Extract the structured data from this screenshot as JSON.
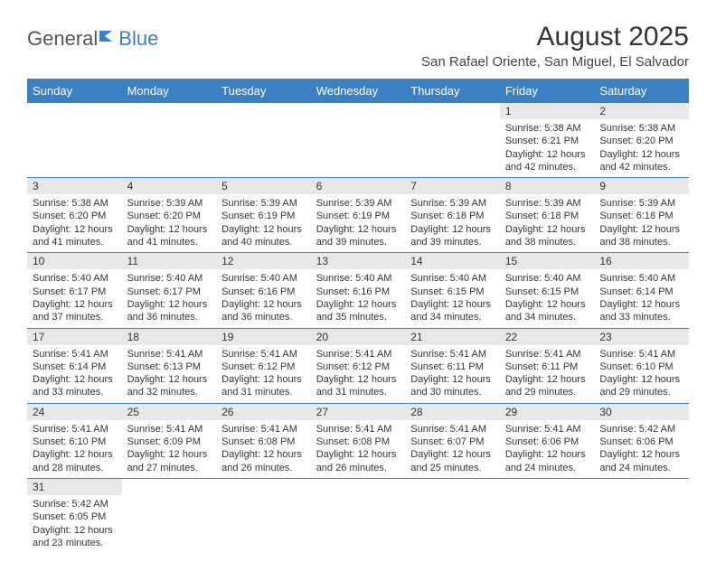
{
  "logo": {
    "part1": "General",
    "part2": "Blue"
  },
  "title": "August 2025",
  "subtitle": "San Rafael Oriente, San Miguel, El Salvador",
  "brand_color": "#3b7fc4",
  "daynum_bg": "#e8e8e8",
  "daysOfWeek": [
    "Sunday",
    "Monday",
    "Tuesday",
    "Wednesday",
    "Thursday",
    "Friday",
    "Saturday"
  ],
  "weeks": [
    [
      null,
      null,
      null,
      null,
      null,
      {
        "n": "1",
        "sr": "5:38 AM",
        "ss": "6:21 PM",
        "dl": "12 hours and 42 minutes."
      },
      {
        "n": "2",
        "sr": "5:38 AM",
        "ss": "6:20 PM",
        "dl": "12 hours and 42 minutes."
      }
    ],
    [
      {
        "n": "3",
        "sr": "5:38 AM",
        "ss": "6:20 PM",
        "dl": "12 hours and 41 minutes."
      },
      {
        "n": "4",
        "sr": "5:39 AM",
        "ss": "6:20 PM",
        "dl": "12 hours and 41 minutes."
      },
      {
        "n": "5",
        "sr": "5:39 AM",
        "ss": "6:19 PM",
        "dl": "12 hours and 40 minutes."
      },
      {
        "n": "6",
        "sr": "5:39 AM",
        "ss": "6:19 PM",
        "dl": "12 hours and 39 minutes."
      },
      {
        "n": "7",
        "sr": "5:39 AM",
        "ss": "6:18 PM",
        "dl": "12 hours and 39 minutes."
      },
      {
        "n": "8",
        "sr": "5:39 AM",
        "ss": "6:18 PM",
        "dl": "12 hours and 38 minutes."
      },
      {
        "n": "9",
        "sr": "5:39 AM",
        "ss": "6:18 PM",
        "dl": "12 hours and 38 minutes."
      }
    ],
    [
      {
        "n": "10",
        "sr": "5:40 AM",
        "ss": "6:17 PM",
        "dl": "12 hours and 37 minutes."
      },
      {
        "n": "11",
        "sr": "5:40 AM",
        "ss": "6:17 PM",
        "dl": "12 hours and 36 minutes."
      },
      {
        "n": "12",
        "sr": "5:40 AM",
        "ss": "6:16 PM",
        "dl": "12 hours and 36 minutes."
      },
      {
        "n": "13",
        "sr": "5:40 AM",
        "ss": "6:16 PM",
        "dl": "12 hours and 35 minutes."
      },
      {
        "n": "14",
        "sr": "5:40 AM",
        "ss": "6:15 PM",
        "dl": "12 hours and 34 minutes."
      },
      {
        "n": "15",
        "sr": "5:40 AM",
        "ss": "6:15 PM",
        "dl": "12 hours and 34 minutes."
      },
      {
        "n": "16",
        "sr": "5:40 AM",
        "ss": "6:14 PM",
        "dl": "12 hours and 33 minutes."
      }
    ],
    [
      {
        "n": "17",
        "sr": "5:41 AM",
        "ss": "6:14 PM",
        "dl": "12 hours and 33 minutes."
      },
      {
        "n": "18",
        "sr": "5:41 AM",
        "ss": "6:13 PM",
        "dl": "12 hours and 32 minutes."
      },
      {
        "n": "19",
        "sr": "5:41 AM",
        "ss": "6:12 PM",
        "dl": "12 hours and 31 minutes."
      },
      {
        "n": "20",
        "sr": "5:41 AM",
        "ss": "6:12 PM",
        "dl": "12 hours and 31 minutes."
      },
      {
        "n": "21",
        "sr": "5:41 AM",
        "ss": "6:11 PM",
        "dl": "12 hours and 30 minutes."
      },
      {
        "n": "22",
        "sr": "5:41 AM",
        "ss": "6:11 PM",
        "dl": "12 hours and 29 minutes."
      },
      {
        "n": "23",
        "sr": "5:41 AM",
        "ss": "6:10 PM",
        "dl": "12 hours and 29 minutes."
      }
    ],
    [
      {
        "n": "24",
        "sr": "5:41 AM",
        "ss": "6:10 PM",
        "dl": "12 hours and 28 minutes."
      },
      {
        "n": "25",
        "sr": "5:41 AM",
        "ss": "6:09 PM",
        "dl": "12 hours and 27 minutes."
      },
      {
        "n": "26",
        "sr": "5:41 AM",
        "ss": "6:08 PM",
        "dl": "12 hours and 26 minutes."
      },
      {
        "n": "27",
        "sr": "5:41 AM",
        "ss": "6:08 PM",
        "dl": "12 hours and 26 minutes."
      },
      {
        "n": "28",
        "sr": "5:41 AM",
        "ss": "6:07 PM",
        "dl": "12 hours and 25 minutes."
      },
      {
        "n": "29",
        "sr": "5:41 AM",
        "ss": "6:06 PM",
        "dl": "12 hours and 24 minutes."
      },
      {
        "n": "30",
        "sr": "5:42 AM",
        "ss": "6:06 PM",
        "dl": "12 hours and 24 minutes."
      }
    ],
    [
      {
        "n": "31",
        "sr": "5:42 AM",
        "ss": "6:05 PM",
        "dl": "12 hours and 23 minutes."
      },
      null,
      null,
      null,
      null,
      null,
      null
    ]
  ],
  "labels": {
    "sunrise": "Sunrise: ",
    "sunset": "Sunset: ",
    "daylight": "Daylight: "
  }
}
